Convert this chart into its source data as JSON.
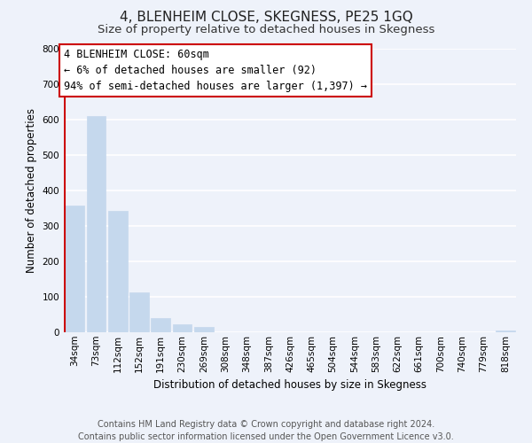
{
  "title": "4, BLENHEIM CLOSE, SKEGNESS, PE25 1GQ",
  "subtitle": "Size of property relative to detached houses in Skegness",
  "xlabel": "Distribution of detached houses by size in Skegness",
  "ylabel": "Number of detached properties",
  "bar_labels": [
    "34sqm",
    "73sqm",
    "112sqm",
    "152sqm",
    "191sqm",
    "230sqm",
    "269sqm",
    "308sqm",
    "348sqm",
    "387sqm",
    "426sqm",
    "465sqm",
    "504sqm",
    "544sqm",
    "583sqm",
    "622sqm",
    "661sqm",
    "700sqm",
    "740sqm",
    "779sqm",
    "818sqm"
  ],
  "bar_values": [
    357,
    610,
    343,
    113,
    40,
    22,
    14,
    0,
    0,
    0,
    0,
    0,
    0,
    0,
    0,
    0,
    0,
    0,
    0,
    0,
    5
  ],
  "bar_color": "#c5d8ed",
  "marker_line_color": "#cc0000",
  "ylim": [
    0,
    800
  ],
  "yticks": [
    0,
    100,
    200,
    300,
    400,
    500,
    600,
    700,
    800
  ],
  "annotation_line1": "4 BLENHEIM CLOSE: 60sqm",
  "annotation_line2": "← 6% of detached houses are smaller (92)",
  "annotation_line3": "94% of semi-detached houses are larger (1,397) →",
  "annotation_box_facecolor": "#ffffff",
  "annotation_box_edgecolor": "#cc0000",
  "footer_line1": "Contains HM Land Registry data © Crown copyright and database right 2024.",
  "footer_line2": "Contains public sector information licensed under the Open Government Licence v3.0.",
  "background_color": "#eef2fa",
  "grid_color": "#ffffff",
  "title_fontsize": 11,
  "subtitle_fontsize": 9.5,
  "axis_label_fontsize": 8.5,
  "tick_fontsize": 7.5,
  "annotation_fontsize": 8.5,
  "footer_fontsize": 7
}
